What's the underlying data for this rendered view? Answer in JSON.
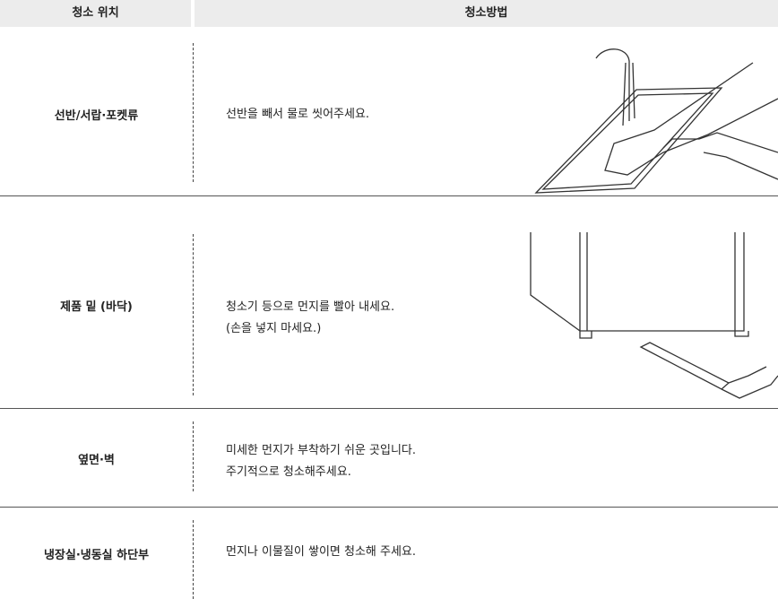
{
  "table": {
    "header": [
      "청소 위치",
      "청소방법"
    ],
    "rows": [
      {
        "location": "선반/서랍·포켓류",
        "method": [
          "선반을 빼서 물로 씻어주세요."
        ]
      },
      {
        "location": "제품 밑 (바닥)",
        "method": [
          "청소기 등으로 먼지를 빨아 내세요.",
          "(손을 넣지 마세요.)"
        ]
      },
      {
        "location": "옆면·벽",
        "method": [
          "미세한 먼지가 부착하기 쉬운 곳입니다.",
          "주기적으로 청소해주세요."
        ]
      },
      {
        "location": "냉장실·냉동실 하단부",
        "method": [
          "먼지나 이물질이 쌓이면 청소해 주세요."
        ]
      }
    ]
  }
}
